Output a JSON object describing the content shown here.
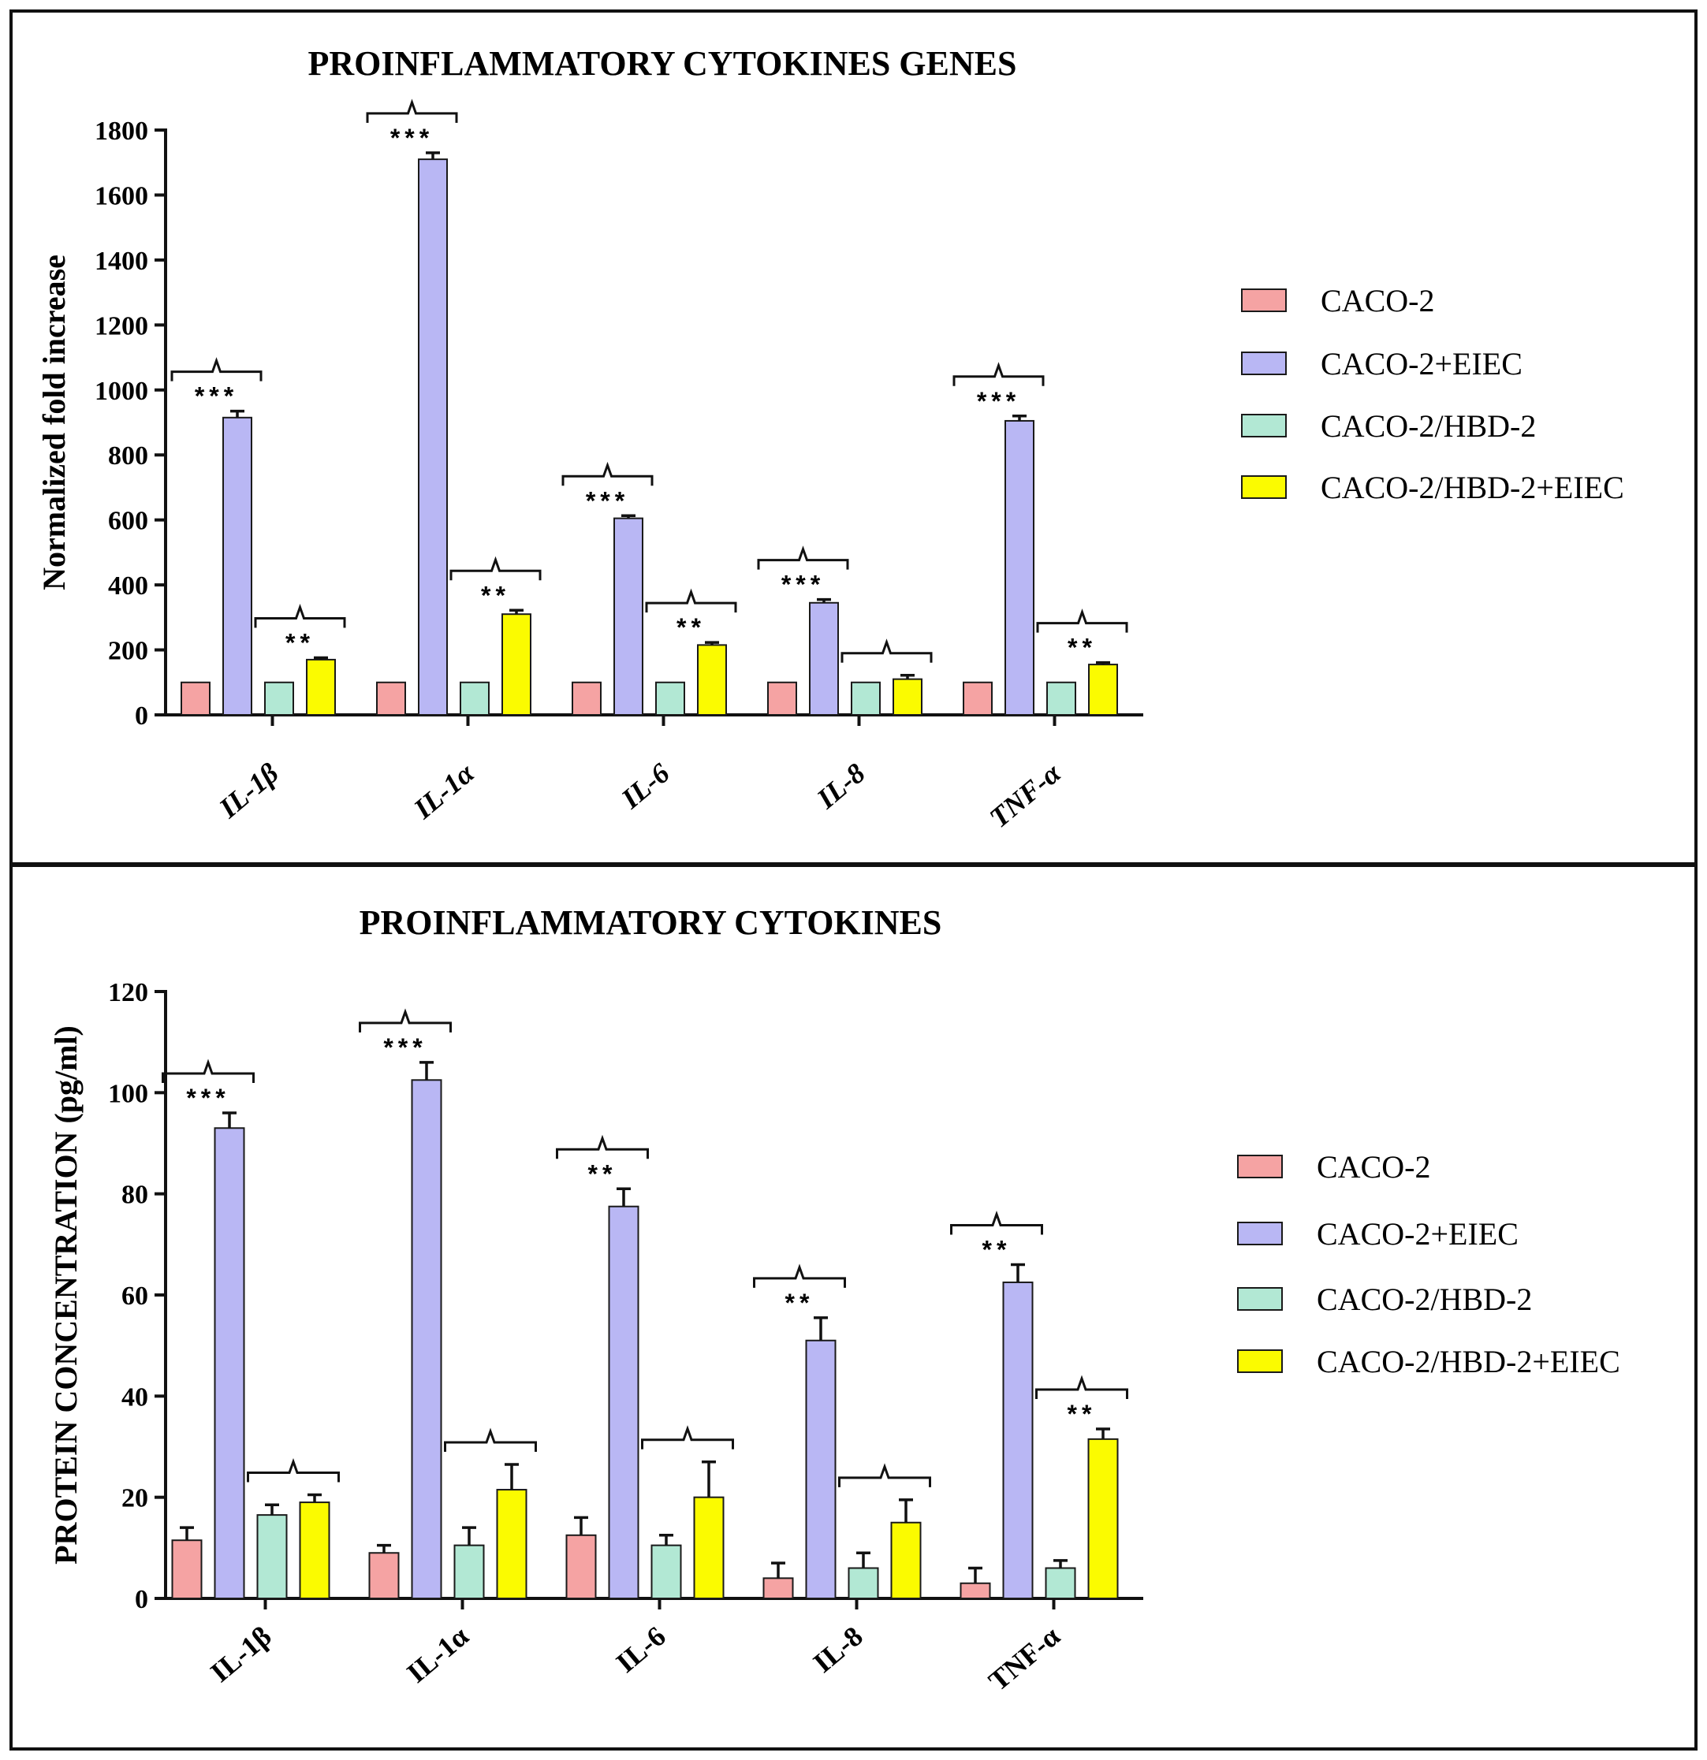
{
  "colors": {
    "series": [
      "#f5a3a3",
      "#b9b7f4",
      "#b2e8d4",
      "#fbfb00"
    ],
    "stroke": "#1a1a1a"
  },
  "chart_data": [
    {
      "type": "bar",
      "title": "PROINFLAMMATORY CYTOKINES GENES",
      "ylabel": "Normalized fold increase",
      "xlabel": "",
      "italic_categories": true,
      "categories": [
        "IL-1β",
        "IL-1α",
        "IL-6",
        "IL-8",
        "TNF-α"
      ],
      "ylim": [
        0,
        1800
      ],
      "yticks": [
        0,
        200,
        400,
        600,
        800,
        1000,
        1200,
        1400,
        1600,
        1800
      ],
      "legend": "right",
      "series": [
        {
          "name": "CACO-2",
          "values": [
            100,
            100,
            100,
            100,
            100
          ],
          "errors": [
            0,
            0,
            0,
            0,
            0
          ]
        },
        {
          "name": "CACO-2+EIEC",
          "values": [
            915,
            1710,
            605,
            345,
            905
          ],
          "errors": [
            20,
            20,
            8,
            10,
            15
          ]
        },
        {
          "name": "CACO-2/HBD-2",
          "values": [
            100,
            100,
            100,
            100,
            100
          ],
          "errors": [
            0,
            0,
            0,
            0,
            0
          ]
        },
        {
          "name": "CACO-2/HBD-2+EIEC",
          "values": [
            170,
            310,
            215,
            110,
            155
          ],
          "errors": [
            6,
            12,
            8,
            12,
            6
          ]
        }
      ],
      "annotations": [
        {
          "category": 0,
          "pair": [
            0,
            1
          ],
          "stars": "***"
        },
        {
          "category": 0,
          "pair": [
            2,
            3
          ],
          "stars": "**"
        },
        {
          "category": 1,
          "pair": [
            0,
            1
          ],
          "stars": "***"
        },
        {
          "category": 1,
          "pair": [
            2,
            3
          ],
          "stars": "**"
        },
        {
          "category": 2,
          "pair": [
            0,
            1
          ],
          "stars": "***"
        },
        {
          "category": 2,
          "pair": [
            2,
            3
          ],
          "stars": "**"
        },
        {
          "category": 3,
          "pair": [
            0,
            1
          ],
          "stars": "***"
        },
        {
          "category": 3,
          "pair": [
            2,
            3
          ],
          "stars": ""
        },
        {
          "category": 4,
          "pair": [
            0,
            1
          ],
          "stars": "***"
        },
        {
          "category": 4,
          "pair": [
            2,
            3
          ],
          "stars": "**"
        }
      ]
    },
    {
      "type": "bar",
      "title": "PROINFLAMMATORY CYTOKINES",
      "ylabel": "PROTEIN CONCENTRATION (pg/ml)",
      "xlabel": "",
      "italic_categories": false,
      "categories": [
        "IL-1β",
        "IL-1α",
        "IL-6",
        "IL-8",
        "TNF-α"
      ],
      "ylim": [
        0,
        120
      ],
      "yticks": [
        0,
        20,
        40,
        60,
        80,
        100,
        120
      ],
      "legend": "right",
      "series": [
        {
          "name": "CACO-2",
          "values": [
            11.5,
            9,
            12.5,
            4,
            3
          ],
          "errors": [
            2.5,
            1.5,
            3.5,
            3,
            3
          ]
        },
        {
          "name": "CACO-2+EIEC",
          "values": [
            93,
            102.5,
            77.5,
            51,
            62.5
          ],
          "errors": [
            3,
            3.5,
            3.5,
            4.5,
            3.5
          ]
        },
        {
          "name": "CACO-2/HBD-2",
          "values": [
            16.5,
            10.5,
            10.5,
            6,
            6
          ],
          "errors": [
            2,
            3.5,
            2,
            3,
            1.5
          ]
        },
        {
          "name": "CACO-2/HBD-2+EIEC",
          "values": [
            19,
            21.5,
            20,
            15,
            31.5
          ],
          "errors": [
            1.5,
            5,
            7,
            4.5,
            2
          ]
        }
      ],
      "annotations": [
        {
          "category": 0,
          "pair": [
            0,
            1
          ],
          "stars": "***"
        },
        {
          "category": 0,
          "pair": [
            2,
            3
          ],
          "stars": ""
        },
        {
          "category": 1,
          "pair": [
            0,
            1
          ],
          "stars": "***"
        },
        {
          "category": 1,
          "pair": [
            2,
            3
          ],
          "stars": ""
        },
        {
          "category": 2,
          "pair": [
            0,
            1
          ],
          "stars": "**"
        },
        {
          "category": 2,
          "pair": [
            2,
            3
          ],
          "stars": ""
        },
        {
          "category": 3,
          "pair": [
            0,
            1
          ],
          "stars": "**"
        },
        {
          "category": 3,
          "pair": [
            2,
            3
          ],
          "stars": ""
        },
        {
          "category": 4,
          "pair": [
            0,
            1
          ],
          "stars": "**"
        },
        {
          "category": 4,
          "pair": [
            2,
            3
          ],
          "stars": "**"
        }
      ]
    }
  ]
}
